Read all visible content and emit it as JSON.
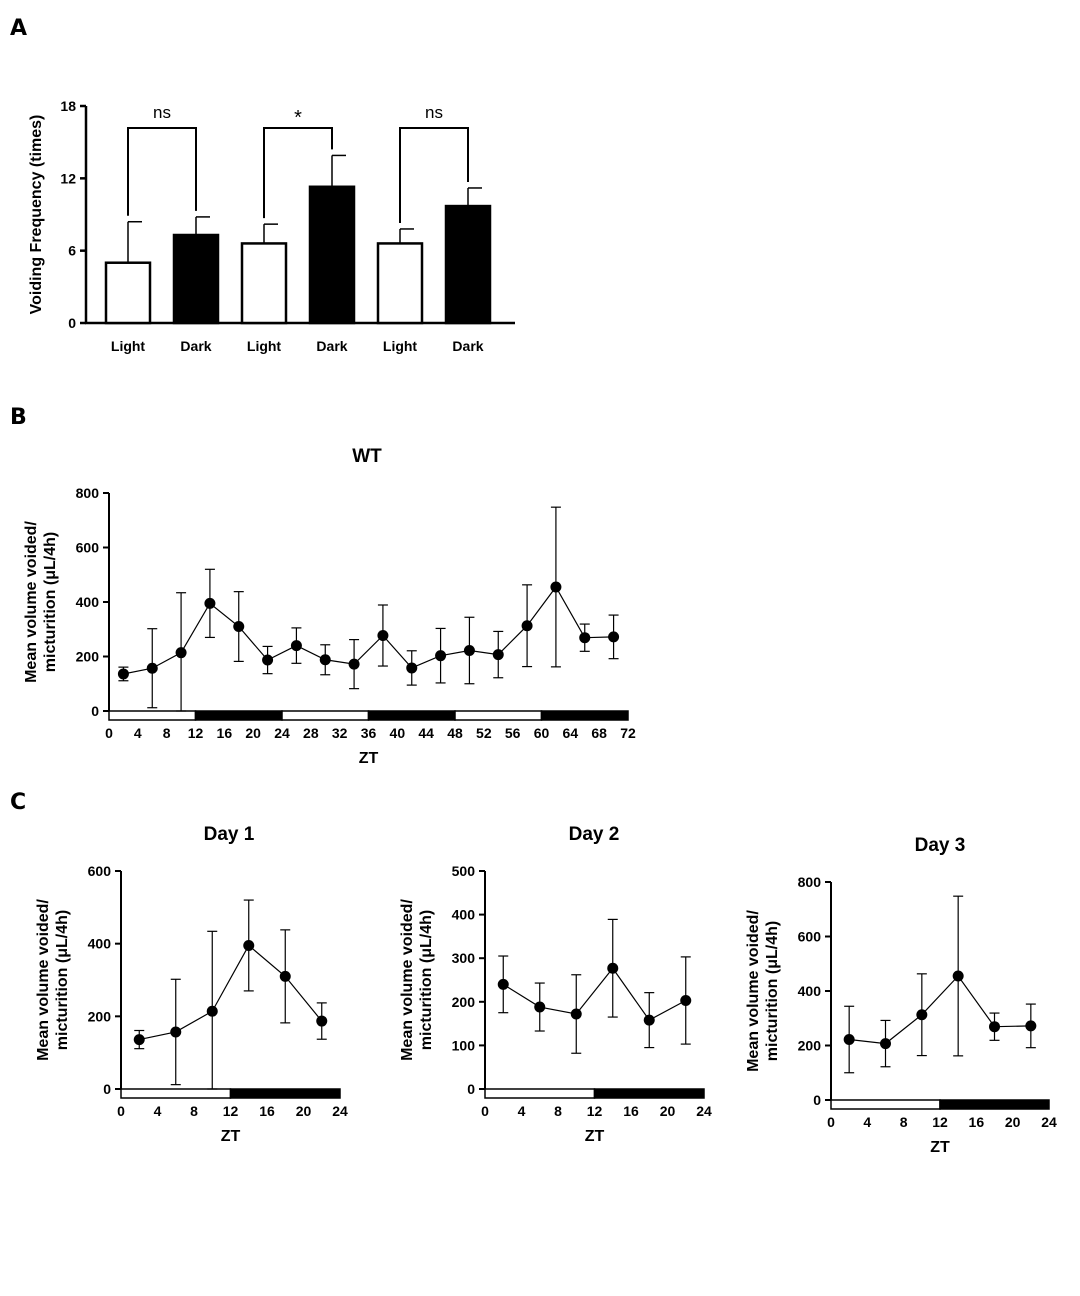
{
  "figure": {
    "panel_labels": [
      "A",
      "B",
      "C"
    ]
  },
  "chart_data": [
    {
      "panel": "A",
      "type": "bar",
      "title": "",
      "ylabel": "Voiding Frequency (times)",
      "xlabel": "",
      "ylim": [
        0,
        18
      ],
      "yticks": [
        0,
        6,
        12,
        18
      ],
      "categories": [
        "Light",
        "Dark",
        "Light",
        "Dark",
        "Light",
        "Dark"
      ],
      "values": [
        5.0,
        7.3,
        6.6,
        11.3,
        6.6,
        9.7
      ],
      "errors": [
        3.4,
        1.5,
        1.6,
        2.6,
        1.2,
        1.5
      ],
      "fills": [
        "#ffffff",
        "#000000",
        "#ffffff",
        "#000000",
        "#ffffff",
        "#000000"
      ],
      "comparisons": [
        {
          "from": 0,
          "to": 1,
          "label": "ns"
        },
        {
          "from": 2,
          "to": 3,
          "label": "*"
        },
        {
          "from": 4,
          "to": 5,
          "label": "ns"
        }
      ]
    },
    {
      "panel": "B",
      "type": "line",
      "title": "WT",
      "xlabel": "ZT",
      "ylabel": "Mean volume voided/\nmicturition (μL/4h)",
      "xlim": [
        0,
        72
      ],
      "xticks": [
        0,
        4,
        8,
        12,
        16,
        20,
        24,
        28,
        32,
        36,
        40,
        44,
        48,
        52,
        56,
        60,
        64,
        68,
        72
      ],
      "ylim": [
        0,
        800
      ],
      "yticks": [
        0,
        200,
        400,
        600,
        800
      ],
      "x": [
        2,
        6,
        10,
        14,
        18,
        22,
        26,
        30,
        34,
        38,
        42,
        46,
        50,
        54,
        58,
        62,
        66,
        70
      ],
      "y": [
        136,
        157,
        214,
        395,
        310,
        187,
        240,
        188,
        172,
        277,
        158,
        203,
        222,
        207,
        313,
        455,
        269,
        272
      ],
      "err": [
        25,
        145,
        220,
        125,
        128,
        50,
        65,
        55,
        90,
        112,
        63,
        100,
        122,
        85,
        150,
        293,
        50,
        80
      ],
      "light_dark_bar": [
        [
          0,
          12,
          "light"
        ],
        [
          12,
          24,
          "dark"
        ],
        [
          24,
          36,
          "light"
        ],
        [
          36,
          48,
          "dark"
        ],
        [
          48,
          60,
          "light"
        ],
        [
          60,
          72,
          "dark"
        ]
      ]
    },
    {
      "panel": "C",
      "type": "line",
      "title": "Day 1",
      "xlabel": "ZT",
      "ylabel": "Mean volume voided/\nmicturition (μL/4h)",
      "xlim": [
        0,
        24
      ],
      "xticks": [
        0,
        4,
        8,
        12,
        16,
        20,
        24
      ],
      "ylim": [
        0,
        600
      ],
      "yticks": [
        0,
        200,
        400,
        600
      ],
      "x": [
        2,
        6,
        10,
        14,
        18,
        22
      ],
      "y": [
        136,
        157,
        214,
        395,
        310,
        187
      ],
      "err": [
        25,
        145,
        220,
        125,
        128,
        50
      ],
      "light_dark_bar": [
        [
          0,
          12,
          "light"
        ],
        [
          12,
          24,
          "dark"
        ]
      ]
    },
    {
      "panel": "C",
      "type": "line",
      "title": "Day 2",
      "xlabel": "ZT",
      "ylabel": "Mean volume voided/\nmicturition (μL/4h)",
      "xlim": [
        0,
        24
      ],
      "xticks": [
        0,
        4,
        8,
        12,
        16,
        20,
        24
      ],
      "ylim": [
        0,
        500
      ],
      "yticks": [
        0,
        100,
        200,
        300,
        400,
        500
      ],
      "x": [
        2,
        6,
        10,
        14,
        18,
        22
      ],
      "y": [
        240,
        188,
        172,
        277,
        158,
        203
      ],
      "err": [
        65,
        55,
        90,
        112,
        63,
        100
      ],
      "light_dark_bar": [
        [
          0,
          12,
          "light"
        ],
        [
          12,
          24,
          "dark"
        ]
      ]
    },
    {
      "panel": "C",
      "type": "line",
      "title": "Day 3",
      "xlabel": "ZT",
      "ylabel": "Mean volume voided/\nmicturition (μL/4h)",
      "xlim": [
        0,
        24
      ],
      "xticks": [
        0,
        4,
        8,
        12,
        16,
        20,
        24
      ],
      "ylim": [
        0,
        800
      ],
      "yticks": [
        0,
        200,
        400,
        600,
        800
      ],
      "x": [
        2,
        6,
        10,
        14,
        18,
        22
      ],
      "y": [
        222,
        207,
        313,
        455,
        269,
        272
      ],
      "err": [
        122,
        85,
        150,
        293,
        50,
        80
      ],
      "light_dark_bar": [
        [
          0,
          12,
          "light"
        ],
        [
          12,
          24,
          "dark"
        ]
      ]
    }
  ]
}
